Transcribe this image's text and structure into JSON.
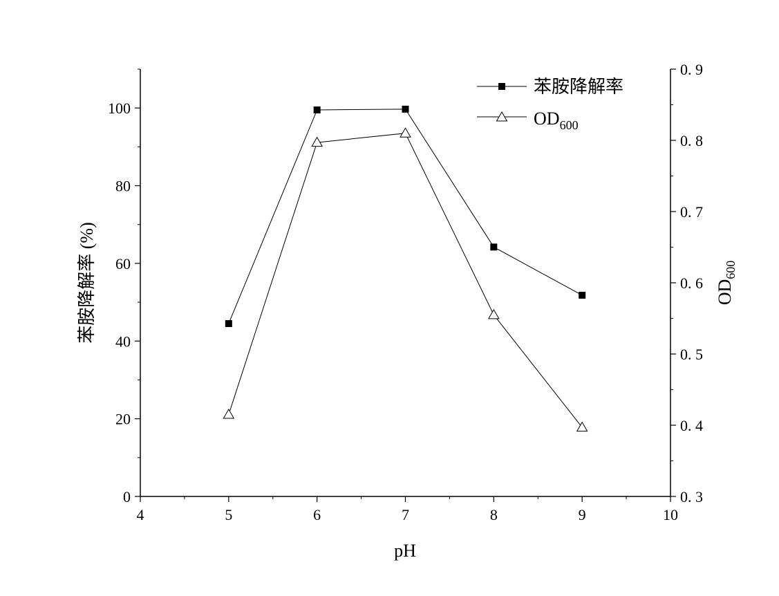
{
  "chart_data": {
    "type": "line",
    "xlabel": "pH",
    "ylabel_left": "苯胺降解率 (%)",
    "ylabel_right_main": "OD",
    "ylabel_right_sub": "600",
    "x": [
      5,
      6,
      7,
      8,
      9
    ],
    "xlim": [
      4,
      10
    ],
    "ylim_left": [
      0,
      110
    ],
    "ylim_right": [
      0.3,
      0.9
    ],
    "x_ticks": [
      "4",
      "5",
      "6",
      "7",
      "8",
      "9",
      "10"
    ],
    "y_left_ticks": [
      "0",
      "20",
      "40",
      "60",
      "80",
      "100"
    ],
    "y_right_ticks": [
      "0. 3",
      "0. 4",
      "0. 5",
      "0. 6",
      "0. 7",
      "0. 8",
      "0. 9"
    ],
    "series": [
      {
        "name": "苯胺降解率",
        "axis": "left",
        "marker": "filled-square",
        "values": [
          44.5,
          99.5,
          99.7,
          64.2,
          51.8
        ]
      },
      {
        "name_main": "OD",
        "name_sub": "600",
        "axis": "right",
        "marker": "open-triangle",
        "values": [
          0.415,
          0.797,
          0.81,
          0.555,
          0.397
        ]
      }
    ],
    "legend_position": "top-right",
    "grid": false
  }
}
